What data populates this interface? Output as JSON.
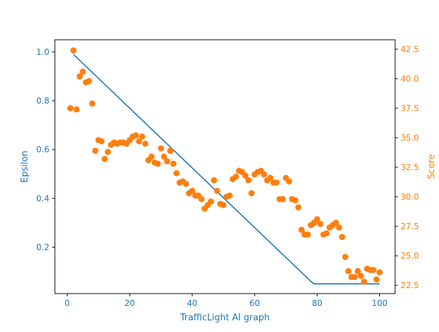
{
  "chart_data": {
    "type": "line",
    "title": "",
    "xlabel": "TrafficLight AI graph",
    "xlim": [
      -3.95,
      104.95
    ],
    "x_ticks": [
      0,
      20,
      40,
      60,
      80,
      100
    ],
    "grid": false,
    "colors": {
      "epsilon": "#1f77b4",
      "score": "#ff7f0e",
      "axis": "#000000"
    },
    "axes": {
      "left": {
        "label": "Epsilon",
        "ylim": [
          0.01,
          1.05
        ],
        "ticks": [
          0.2,
          0.4,
          0.6,
          0.8,
          1.0
        ],
        "tick_format": 1
      },
      "right": {
        "label": "Score",
        "ylim": [
          21.8,
          43.3
        ],
        "ticks": [
          22.5,
          25.0,
          27.5,
          30.0,
          32.5,
          35.0,
          37.5,
          40.0,
          42.5
        ],
        "tick_format": 1
      }
    },
    "series": [
      {
        "key": "epsilon",
        "type": "line",
        "axis": "left",
        "x": [
          2,
          78,
          79,
          100
        ],
        "y": [
          0.99,
          0.06,
          0.05,
          0.05
        ]
      },
      {
        "key": "score",
        "type": "scatter",
        "axis": "right",
        "x": [
          1,
          2,
          3,
          4,
          5,
          6,
          7,
          8,
          9,
          10,
          11,
          12,
          13,
          14,
          15,
          16,
          17,
          18,
          19,
          20,
          21,
          22,
          23,
          24,
          25,
          26,
          27,
          28,
          29,
          30,
          31,
          32,
          33,
          34,
          35,
          36,
          37,
          38,
          39,
          40,
          41,
          42,
          43,
          44,
          45,
          46,
          47,
          48,
          49,
          50,
          51,
          52,
          53,
          54,
          55,
          56,
          57,
          58,
          59,
          60,
          61,
          62,
          63,
          64,
          65,
          66,
          67,
          68,
          69,
          70,
          71,
          72,
          73,
          74,
          75,
          76,
          77,
          78,
          79,
          80,
          81,
          82,
          83,
          84,
          85,
          86,
          87,
          88,
          89,
          90,
          91,
          92,
          93,
          94,
          95,
          96,
          97,
          98,
          99,
          100
        ],
        "y": [
          37.5,
          42.4,
          37.4,
          40.2,
          40.6,
          39.7,
          39.8,
          37.9,
          33.9,
          34.8,
          34.7,
          33.2,
          33.8,
          34.4,
          34.6,
          34.5,
          34.6,
          34.6,
          34.5,
          34.8,
          35.1,
          35.2,
          34.7,
          35.1,
          34.5,
          33.1,
          33.4,
          32.9,
          32.8,
          34.1,
          33.4,
          33.0,
          33.9,
          32.8,
          32.0,
          31.2,
          31.3,
          31.1,
          30.3,
          30.5,
          30.1,
          30.1,
          29.8,
          29.0,
          29.3,
          29.6,
          31.4,
          30.5,
          29.4,
          29.3,
          30.0,
          30.1,
          31.5,
          31.7,
          32.2,
          32.1,
          31.8,
          31.4,
          30.3,
          31.9,
          32.1,
          32.2,
          31.9,
          31.4,
          31.6,
          31.2,
          31.2,
          29.8,
          29.8,
          31.6,
          31.3,
          29.8,
          29.7,
          29.1,
          27.2,
          26.8,
          26.8,
          27.6,
          27.8,
          28.1,
          27.7,
          26.8,
          26.9,
          27.4,
          27.6,
          27.8,
          27.4,
          26.6,
          24.9,
          23.7,
          23.2,
          23.2,
          23.7,
          23.3,
          22.8,
          23.9,
          23.8,
          23.8,
          23.0,
          23.6
        ]
      }
    ]
  }
}
